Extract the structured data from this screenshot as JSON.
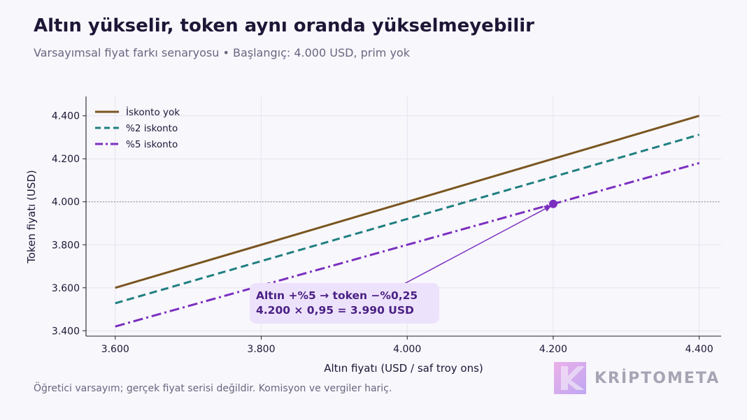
{
  "title": "Altın yükselir, token aynı oranda yükselmeyebilir",
  "subtitle": "Varsayımsal fiyat farkı senaryosu • Başlangıç: 4.000 USD, prim yok",
  "footnote": "Öğretici varsayım; gerçek fiyat serisi değildir. Komisyon ve vergiler hariç.",
  "brand": {
    "name": "KRİPTOMETA"
  },
  "colors": {
    "background": "#f8f7fc",
    "no_discount": "#7a5520",
    "discount_2": "#1f7f80",
    "discount_5": "#7b2fbf",
    "annotation_bg": "#ede2fb",
    "annotation_text": "#4a2185",
    "reference_line": "#8a8a8a"
  },
  "chart_data": {
    "type": "line",
    "xlabel": "Altın fiyatı (USD / saf troy ons)",
    "ylabel": "Token fiyatı (USD)",
    "xlim": [
      3560,
      4430
    ],
    "ylim": [
      3375,
      4490
    ],
    "x_ticks": [
      3600,
      3800,
      4000,
      4200,
      4400
    ],
    "x_tick_labels": [
      "3.600",
      "3.800",
      "4.000",
      "4.200",
      "4.400"
    ],
    "y_ticks": [
      3400,
      3600,
      3800,
      4000,
      4200,
      4400
    ],
    "y_tick_labels": [
      "3.400",
      "3.600",
      "3.800",
      "4.000",
      "4.200",
      "4.400"
    ],
    "grid": true,
    "legend_position": "top-left",
    "reference_line_y": 4000,
    "series": [
      {
        "name": "İskonto yok",
        "style": "solid",
        "x": [
          3600,
          4400
        ],
        "y": [
          3600,
          4400
        ]
      },
      {
        "name": "%2 iskonto",
        "style": "dashed",
        "x": [
          3600,
          4400
        ],
        "y": [
          3528,
          4312
        ]
      },
      {
        "name": "%5 iskonto",
        "style": "dashdot",
        "x": [
          3600,
          4400
        ],
        "y": [
          3420,
          4180
        ]
      }
    ],
    "highlight_point": {
      "x": 4200,
      "y": 3990
    },
    "annotation": {
      "line1": "Altın +%5 → token −%0,25",
      "line2": "4.200 × 0,95 = 3.990 USD",
      "anchor_x": 3980,
      "anchor_y": 3590
    }
  }
}
